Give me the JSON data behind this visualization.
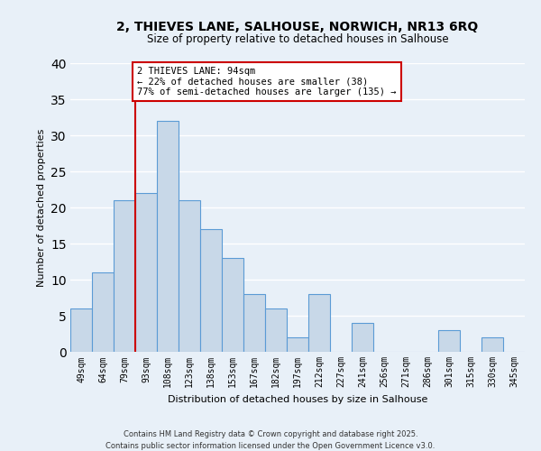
{
  "title": "2, THIEVES LANE, SALHOUSE, NORWICH, NR13 6RQ",
  "subtitle": "Size of property relative to detached houses in Salhouse",
  "xlabel": "Distribution of detached houses by size in Salhouse",
  "ylabel": "Number of detached properties",
  "categories": [
    "49sqm",
    "64sqm",
    "79sqm",
    "93sqm",
    "108sqm",
    "123sqm",
    "138sqm",
    "153sqm",
    "167sqm",
    "182sqm",
    "197sqm",
    "212sqm",
    "227sqm",
    "241sqm",
    "256sqm",
    "271sqm",
    "286sqm",
    "301sqm",
    "315sqm",
    "330sqm",
    "345sqm"
  ],
  "values": [
    6,
    11,
    21,
    22,
    32,
    21,
    17,
    13,
    8,
    6,
    2,
    8,
    0,
    4,
    0,
    0,
    0,
    3,
    0,
    2,
    0
  ],
  "bar_color": "#c8d8e8",
  "bar_edge_color": "#5b9bd5",
  "background_color": "#e8f0f8",
  "grid_color": "#ffffff",
  "property_line_index": 3,
  "property_line_color": "#cc0000",
  "annotation_text": "2 THIEVES LANE: 94sqm\n← 22% of detached houses are smaller (38)\n77% of semi-detached houses are larger (135) →",
  "annotation_box_color": "#ffffff",
  "annotation_box_edge": "#cc0000",
  "ylim": [
    0,
    40
  ],
  "yticks": [
    0,
    5,
    10,
    15,
    20,
    25,
    30,
    35,
    40
  ],
  "footnote1": "Contains HM Land Registry data © Crown copyright and database right 2025.",
  "footnote2": "Contains public sector information licensed under the Open Government Licence v3.0."
}
